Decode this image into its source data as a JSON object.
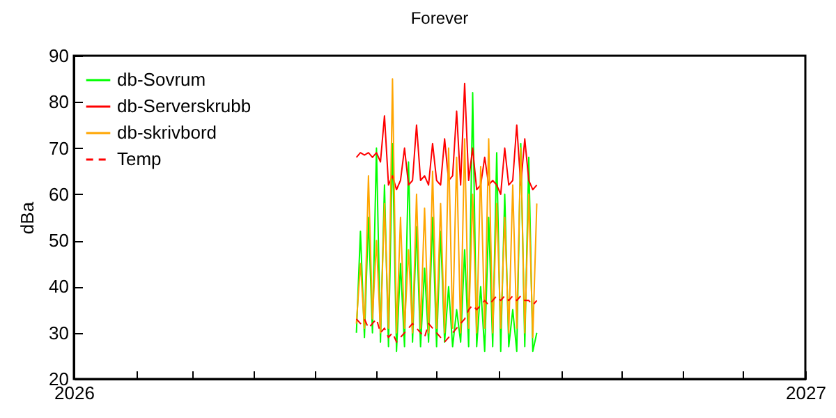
{
  "chart_data": {
    "type": "line",
    "title": "Forever",
    "ylabel": "dBa",
    "x": [
      "2026-05-22",
      "2026-05-24",
      "2026-05-26",
      "2026-05-28",
      "2026-05-30",
      "2026-06-01",
      "2026-06-03",
      "2026-06-05",
      "2026-06-07",
      "2026-06-09",
      "2026-06-11",
      "2026-06-13",
      "2026-06-15",
      "2026-06-17",
      "2026-06-19",
      "2026-06-21",
      "2026-06-23",
      "2026-06-25",
      "2026-06-27",
      "2026-06-29",
      "2026-07-01",
      "2026-07-03",
      "2026-07-05",
      "2026-07-07",
      "2026-07-09",
      "2026-07-11",
      "2026-07-13",
      "2026-07-15",
      "2026-07-17",
      "2026-07-19",
      "2026-07-21",
      "2026-07-23",
      "2026-07-25",
      "2026-07-27",
      "2026-07-29",
      "2026-07-31",
      "2026-08-02",
      "2026-08-04",
      "2026-08-06",
      "2026-08-08",
      "2026-08-10",
      "2026-08-12",
      "2026-08-14",
      "2026-08-16",
      "2026-08-18",
      "2026-08-20"
    ],
    "series": [
      {
        "name": "db-Sovrum",
        "color": "#00ff00",
        "line_style": "solid",
        "values": [
          30,
          52,
          29,
          55,
          30,
          70,
          28,
          62,
          27,
          71,
          26,
          45,
          27,
          67,
          28,
          53,
          27,
          44,
          28,
          55,
          27,
          52,
          28,
          40,
          27,
          35,
          28,
          48,
          27,
          82,
          27,
          40,
          26,
          55,
          27,
          69,
          26,
          60,
          27,
          35,
          26,
          71,
          27,
          68,
          26,
          30
        ]
      },
      {
        "name": "db-Serverskrubb",
        "color": "#ff0000",
        "line_style": "solid",
        "values": [
          68,
          69,
          68.5,
          69,
          68,
          69,
          67,
          77,
          62,
          64,
          61,
          63,
          70,
          62,
          63,
          75,
          63,
          64,
          62,
          71,
          63,
          62,
          72,
          63,
          64,
          78,
          62,
          84,
          63,
          70,
          61,
          62,
          68,
          62,
          63,
          62,
          60,
          70,
          62,
          63,
          75,
          62,
          72,
          63,
          61,
          62
        ]
      },
      {
        "name": "db-skrivbord",
        "color": "#ffa500",
        "line_style": "solid",
        "values": [
          32,
          45,
          31,
          64,
          33,
          50,
          30,
          58,
          31,
          85,
          30,
          55,
          31,
          48,
          30,
          60,
          31,
          57,
          30,
          65,
          31,
          58,
          30,
          70,
          31,
          68,
          30,
          72,
          31,
          60,
          30,
          66,
          31,
          72,
          30,
          58,
          31,
          55,
          30,
          62,
          31,
          70,
          30,
          60,
          29,
          58
        ]
      },
      {
        "name": "Temp",
        "color": "#ff0000",
        "line_style": "dashed",
        "values": [
          33,
          32,
          33,
          31,
          32,
          33,
          30,
          31,
          29,
          30,
          28,
          29,
          30,
          31,
          32,
          31,
          30,
          29,
          32,
          31,
          30,
          29,
          28,
          29,
          30,
          31,
          32,
          33,
          35,
          36,
          35,
          36,
          37,
          36,
          37,
          38,
          37,
          38,
          37,
          38,
          37,
          38,
          37,
          37,
          36,
          37
        ]
      }
    ],
    "xlim": [
      "2026",
      "2027"
    ],
    "xticks": [
      {
        "value": "2026",
        "label": "2026"
      },
      {
        "value": "2026-02",
        "label": null
      },
      {
        "value": "2026-03",
        "label": null
      },
      {
        "value": "2026-04",
        "label": null
      },
      {
        "value": "2026-05",
        "label": null
      },
      {
        "value": "2026-06",
        "label": null
      },
      {
        "value": "2026-07",
        "label": null
      },
      {
        "value": "2026-08",
        "label": null
      },
      {
        "value": "2026-09",
        "label": null
      },
      {
        "value": "2026-10",
        "label": null
      },
      {
        "value": "2026-11",
        "label": null
      },
      {
        "value": "2026-12",
        "label": null
      },
      {
        "value": "2027",
        "label": "2027"
      }
    ],
    "ylim": [
      20,
      90
    ],
    "yticks": [
      20,
      30,
      40,
      50,
      60,
      70,
      80,
      90
    ],
    "grid": false,
    "legend": "top left",
    "marker": "none"
  }
}
